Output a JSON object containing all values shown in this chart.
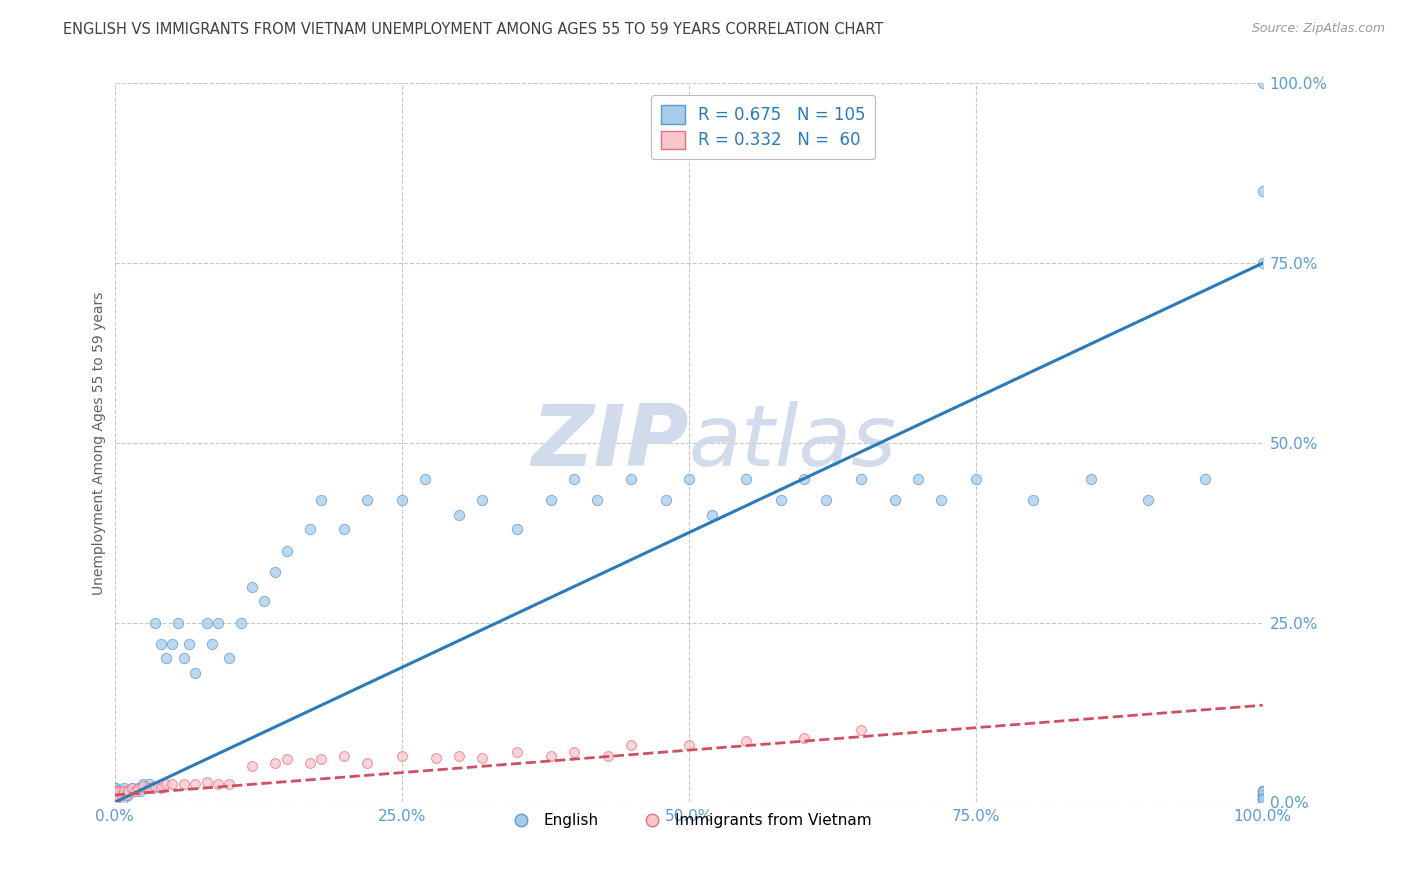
{
  "title": "ENGLISH VS IMMIGRANTS FROM VIETNAM UNEMPLOYMENT AMONG AGES 55 TO 59 YEARS CORRELATION CHART",
  "source": "Source: ZipAtlas.com",
  "ylabel": "Unemployment Among Ages 55 to 59 years",
  "legend_english": "English",
  "legend_vietnam": "Immigrants from Vietnam",
  "R_english": 0.675,
  "N_english": 105,
  "R_vietnam": 0.332,
  "N_vietnam": 60,
  "color_english_fill": "#a8cce8",
  "color_english_edge": "#5b9bd5",
  "color_vietnam_fill": "#f9c6cc",
  "color_vietnam_edge": "#e07080",
  "color_trend_english": "#2b7bba",
  "color_trend_vietnam": "#d05060",
  "title_color": "#404040",
  "axis_label_color": "#606060",
  "tick_label_color": "#5b9bd5",
  "background_color": "#ffffff",
  "grid_color": "#c8c8c8",
  "watermark_color": "#cdd8ea",
  "xlim": [
    0.0,
    1.0
  ],
  "ylim": [
    0.0,
    1.0
  ],
  "xticks": [
    0.0,
    0.25,
    0.5,
    0.75,
    1.0
  ],
  "yticks": [
    0.0,
    0.25,
    0.5,
    0.75,
    1.0
  ],
  "trend_english_x0": 0.0,
  "trend_english_y0": 0.0,
  "trend_english_x1": 1.0,
  "trend_english_y1": 0.75,
  "trend_vietnam_x0": 0.0,
  "trend_vietnam_y0": 0.01,
  "trend_vietnam_x1": 1.0,
  "trend_vietnam_y1": 0.135,
  "eng_x": [
    0.0,
    0.0,
    0.0,
    0.0,
    0.0,
    0.0,
    0.0,
    0.0,
    0.0,
    0.0,
    0.0,
    0.0,
    0.0,
    0.0,
    0.0,
    0.0,
    0.0,
    0.0,
    0.0,
    0.0,
    0.003,
    0.005,
    0.007,
    0.008,
    0.01,
    0.012,
    0.015,
    0.018,
    0.02,
    0.022,
    0.025,
    0.028,
    0.03,
    0.033,
    0.035,
    0.04,
    0.045,
    0.05,
    0.055,
    0.06,
    0.065,
    0.07,
    0.08,
    0.085,
    0.09,
    0.1,
    0.11,
    0.12,
    0.13,
    0.14,
    0.15,
    0.17,
    0.18,
    0.2,
    0.22,
    0.25,
    0.27,
    0.3,
    0.32,
    0.35,
    0.38,
    0.4,
    0.42,
    0.45,
    0.48,
    0.5,
    0.52,
    0.55,
    0.58,
    0.6,
    0.62,
    0.65,
    0.68,
    0.7,
    0.72,
    0.75,
    0.8,
    0.85,
    0.9,
    0.95,
    1.0,
    1.0,
    1.0,
    1.0,
    1.0,
    1.0,
    1.0,
    1.0,
    1.0,
    1.0,
    1.0,
    1.0,
    1.0,
    1.0,
    1.0,
    1.0,
    1.0,
    1.0,
    1.0,
    1.0,
    1.0,
    1.0,
    1.0,
    1.0,
    1.0
  ],
  "eng_y": [
    0.005,
    0.01,
    0.005,
    0.02,
    0.008,
    0.015,
    0.005,
    0.01,
    0.015,
    0.005,
    0.01,
    0.02,
    0.008,
    0.015,
    0.005,
    0.01,
    0.015,
    0.005,
    0.02,
    0.008,
    0.01,
    0.015,
    0.005,
    0.02,
    0.015,
    0.01,
    0.02,
    0.015,
    0.02,
    0.015,
    0.025,
    0.02,
    0.025,
    0.02,
    0.25,
    0.22,
    0.2,
    0.22,
    0.25,
    0.2,
    0.22,
    0.18,
    0.25,
    0.22,
    0.25,
    0.2,
    0.25,
    0.3,
    0.28,
    0.32,
    0.35,
    0.38,
    0.42,
    0.38,
    0.42,
    0.42,
    0.45,
    0.4,
    0.42,
    0.38,
    0.42,
    0.45,
    0.42,
    0.45,
    0.42,
    0.45,
    0.4,
    0.45,
    0.42,
    0.45,
    0.42,
    0.45,
    0.42,
    0.45,
    0.42,
    0.45,
    0.42,
    0.45,
    0.42,
    0.45,
    0.005,
    0.01,
    0.005,
    0.01,
    0.015,
    0.005,
    0.01,
    0.005,
    0.01,
    0.015,
    0.005,
    0.01,
    0.005,
    0.01,
    0.015,
    0.005,
    0.01,
    0.005,
    0.01,
    0.015,
    0.005,
    0.75,
    0.85,
    1.0,
    0.005
  ],
  "viet_x": [
    0.0,
    0.0,
    0.0,
    0.0,
    0.0,
    0.0,
    0.0,
    0.0,
    0.0,
    0.0,
    0.0,
    0.0,
    0.0,
    0.0,
    0.0,
    0.0,
    0.0,
    0.0,
    0.0,
    0.0,
    0.002,
    0.004,
    0.006,
    0.008,
    0.01,
    0.012,
    0.015,
    0.018,
    0.02,
    0.025,
    0.03,
    0.035,
    0.04,
    0.045,
    0.05,
    0.06,
    0.07,
    0.08,
    0.09,
    0.1,
    0.12,
    0.14,
    0.15,
    0.17,
    0.18,
    0.2,
    0.22,
    0.25,
    0.28,
    0.3,
    0.32,
    0.35,
    0.38,
    0.4,
    0.43,
    0.45,
    0.5,
    0.55,
    0.6,
    0.65
  ],
  "viet_y": [
    0.005,
    0.01,
    0.005,
    0.01,
    0.015,
    0.005,
    0.01,
    0.005,
    0.01,
    0.015,
    0.005,
    0.01,
    0.005,
    0.01,
    0.015,
    0.005,
    0.01,
    0.005,
    0.01,
    0.015,
    0.01,
    0.015,
    0.01,
    0.015,
    0.01,
    0.015,
    0.02,
    0.015,
    0.018,
    0.022,
    0.02,
    0.022,
    0.02,
    0.025,
    0.025,
    0.025,
    0.025,
    0.028,
    0.025,
    0.025,
    0.05,
    0.055,
    0.06,
    0.055,
    0.06,
    0.065,
    0.055,
    0.065,
    0.062,
    0.065,
    0.062,
    0.07,
    0.065,
    0.07,
    0.065,
    0.08,
    0.08,
    0.085,
    0.09,
    0.1
  ]
}
